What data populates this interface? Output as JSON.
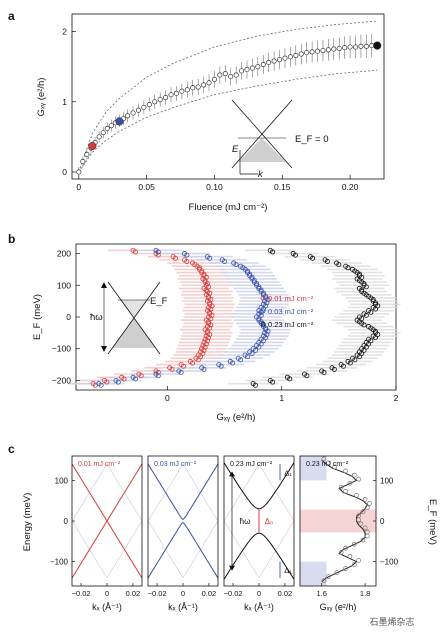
{
  "panels": {
    "a": "a",
    "b": "b",
    "c": "c"
  },
  "watermark": "石墨烯杂志",
  "colors": {
    "red": "#d83a3a",
    "blue": "#3750a8",
    "black": "#111111",
    "grey": "#999999",
    "pink": "#f3c9c9",
    "lavender": "#ccd0ea",
    "cone": "#cfcfcf"
  },
  "chart_data": [
    {
      "id": "a",
      "type": "scatter",
      "xlabel": "Fluence (mJ cm⁻²)",
      "ylabel": "Gₓᵧ (e²/h)",
      "xlim": [
        -0.005,
        0.225
      ],
      "ylim": [
        -0.1,
        2.25
      ],
      "xticks": [
        0,
        0.05,
        0.1,
        0.15,
        0.2
      ],
      "xticklabels": [
        "0",
        "0.05",
        "0.10",
        "0.15",
        "0.20"
      ],
      "yticks": [
        0,
        1,
        2
      ],
      "yticklabels": [
        "0",
        "1",
        "2"
      ],
      "series": [
        {
          "x": [
            0.0,
            0.003,
            0.006,
            0.009,
            0.012,
            0.015,
            0.018,
            0.021,
            0.024,
            0.027,
            0.03,
            0.033,
            0.036,
            0.04,
            0.044,
            0.048,
            0.052,
            0.056,
            0.06,
            0.064,
            0.068,
            0.072,
            0.076,
            0.08,
            0.084,
            0.088,
            0.092,
            0.096,
            0.1,
            0.104,
            0.108,
            0.112,
            0.116,
            0.12,
            0.124,
            0.128,
            0.132,
            0.136,
            0.14,
            0.144,
            0.148,
            0.152,
            0.156,
            0.16,
            0.164,
            0.168,
            0.172,
            0.176,
            0.18,
            0.184,
            0.188,
            0.192,
            0.196,
            0.2,
            0.204,
            0.208,
            0.212,
            0.216
          ],
          "y": [
            0.0,
            0.15,
            0.25,
            0.34,
            0.42,
            0.5,
            0.56,
            0.62,
            0.66,
            0.7,
            0.73,
            0.76,
            0.8,
            0.84,
            0.88,
            0.92,
            0.96,
            1.0,
            1.03,
            1.06,
            1.1,
            1.12,
            1.15,
            1.17,
            1.2,
            1.21,
            1.24,
            1.27,
            1.32,
            1.38,
            1.4,
            1.36,
            1.38,
            1.44,
            1.46,
            1.48,
            1.5,
            1.53,
            1.56,
            1.58,
            1.6,
            1.62,
            1.64,
            1.66,
            1.68,
            1.7,
            1.71,
            1.72,
            1.73,
            1.74,
            1.75,
            1.76,
            1.77,
            1.78,
            1.78,
            1.79,
            1.79,
            1.8
          ]
        }
      ],
      "highlight": [
        {
          "x": 0.01,
          "y": 0.37,
          "color": "#d83a3a"
        },
        {
          "x": 0.03,
          "y": 0.72,
          "color": "#3750a8"
        },
        {
          "x": 0.22,
          "y": 1.8,
          "color": "#111111"
        }
      ],
      "bound_upper": {
        "x": [
          0,
          0.01,
          0.02,
          0.03,
          0.05,
          0.07,
          0.1,
          0.13,
          0.16,
          0.19,
          0.22
        ],
        "y": [
          0,
          0.55,
          0.85,
          1.05,
          1.35,
          1.55,
          1.78,
          1.93,
          2.03,
          2.1,
          2.15
        ]
      },
      "bound_lower": {
        "x": [
          0,
          0.01,
          0.02,
          0.03,
          0.05,
          0.07,
          0.1,
          0.13,
          0.16,
          0.19,
          0.22
        ],
        "y": [
          0,
          0.28,
          0.45,
          0.58,
          0.78,
          0.92,
          1.1,
          1.22,
          1.32,
          1.4,
          1.45
        ]
      },
      "inset": {
        "ef_label": "E_F = 0",
        "e_axis": "E",
        "k_axis": "k"
      }
    },
    {
      "id": "b",
      "type": "scatter",
      "xlabel": "Gₓᵧ (e²/h)",
      "ylabel": "E_F (meV)",
      "xlim": [
        -0.8,
        2.0
      ],
      "ylim": [
        -230,
        230
      ],
      "xticks": [
        0,
        1,
        2
      ],
      "xticklabels": [
        "0",
        "1",
        "2"
      ],
      "yticks": [
        -200,
        -100,
        0,
        100,
        200
      ],
      "yticklabels": [
        "−200",
        "−100",
        "0",
        "100",
        "200"
      ],
      "series": [
        {
          "name": "0.01 mJ cm⁻²",
          "color": "#d83a3a",
          "y": [
            210,
            200,
            190,
            180,
            170,
            160,
            150,
            140,
            130,
            120,
            110,
            100,
            90,
            80,
            70,
            60,
            50,
            40,
            30,
            20,
            10,
            0,
            -10,
            -20,
            -30,
            -40,
            -50,
            -60,
            -70,
            -80,
            -90,
            -100,
            -110,
            -120,
            -130,
            -140,
            -150,
            -160,
            -170,
            -180,
            -190,
            -200,
            -210
          ],
          "x": [
            -0.3,
            -0.1,
            0.05,
            0.15,
            0.22,
            0.26,
            0.28,
            0.3,
            0.32,
            0.31,
            0.33,
            0.34,
            0.32,
            0.35,
            0.34,
            0.36,
            0.35,
            0.37,
            0.36,
            0.35,
            0.37,
            0.36,
            0.34,
            0.36,
            0.35,
            0.33,
            0.35,
            0.34,
            0.33,
            0.32,
            0.31,
            0.3,
            0.29,
            0.27,
            0.25,
            0.2,
            0.12,
            0.02,
            -0.1,
            -0.25,
            -0.4,
            -0.55,
            -0.65
          ]
        },
        {
          "name": "0.03 mJ cm⁻²",
          "color": "#3750a8",
          "y": [
            210,
            200,
            190,
            180,
            170,
            160,
            150,
            140,
            130,
            120,
            110,
            100,
            90,
            80,
            70,
            60,
            50,
            40,
            30,
            20,
            10,
            0,
            -10,
            -20,
            -30,
            -40,
            -50,
            -60,
            -70,
            -80,
            -90,
            -100,
            -110,
            -120,
            -130,
            -140,
            -150,
            -160,
            -170,
            -180,
            -190,
            -200,
            -210
          ],
          "x": [
            -0.1,
            0.15,
            0.35,
            0.48,
            0.58,
            0.64,
            0.68,
            0.7,
            0.72,
            0.74,
            0.76,
            0.78,
            0.8,
            0.82,
            0.84,
            0.86,
            0.85,
            0.84,
            0.82,
            0.8,
            0.8,
            0.78,
            0.8,
            0.82,
            0.84,
            0.86,
            0.85,
            0.84,
            0.82,
            0.8,
            0.78,
            0.75,
            0.72,
            0.68,
            0.62,
            0.55,
            0.45,
            0.3,
            0.1,
            -0.1,
            -0.3,
            -0.45,
            -0.6
          ]
        },
        {
          "name": "0.23 mJ cm⁻²",
          "color": "#111111",
          "y": [
            210,
            200,
            190,
            180,
            170,
            160,
            150,
            140,
            130,
            120,
            110,
            100,
            90,
            80,
            70,
            60,
            50,
            40,
            30,
            20,
            10,
            0,
            -10,
            -20,
            -30,
            -40,
            -50,
            -60,
            -70,
            -80,
            -90,
            -100,
            -110,
            -120,
            -130,
            -140,
            -150,
            -160,
            -170,
            -180,
            -190,
            -200,
            -210
          ],
          "x": [
            0.9,
            1.1,
            1.25,
            1.38,
            1.48,
            1.56,
            1.62,
            1.66,
            1.68,
            1.66,
            1.7,
            1.72,
            1.68,
            1.7,
            1.74,
            1.78,
            1.8,
            1.82,
            1.8,
            1.76,
            1.72,
            1.68,
            1.66,
            1.7,
            1.76,
            1.8,
            1.82,
            1.8,
            1.76,
            1.74,
            1.72,
            1.7,
            1.68,
            1.66,
            1.62,
            1.58,
            1.52,
            1.44,
            1.35,
            1.2,
            1.05,
            0.9,
            0.75
          ]
        }
      ],
      "legend": "right",
      "inset": {
        "omega_label": "ħω",
        "ef_label": "E_F"
      }
    },
    {
      "id": "c",
      "type": "line",
      "subpanels": [
        {
          "title": "0.01 mJ cm⁻²",
          "title_color": "#d83a3a",
          "xlabel": "kₓ (Å⁻¹)",
          "gap": 0
        },
        {
          "title": "0.03 mJ cm⁻²",
          "title_color": "#3750a8",
          "xlabel": "kₓ (Å⁻¹)",
          "gap": 8
        },
        {
          "title": "0.23 mJ cm⁻²",
          "title_color": "#111111",
          "xlabel": "kₓ (Å⁻¹)",
          "gap": 60
        },
        {
          "title": "0.23 mJ cm⁻²",
          "title_color": "#111111",
          "xlabel": "Gₓᵧ (e²/h)"
        }
      ],
      "ylabel_left": "Energy (meV)",
      "ylabel_right": "E_F (meV)",
      "ylim": [
        -160,
        160
      ],
      "yticks": [
        -100,
        0,
        100
      ],
      "yticklabels": [
        "−100",
        "0",
        "100"
      ],
      "xticks_k": [
        -0.02,
        0,
        0.02
      ],
      "xticklabels_k": [
        "−0.02",
        "0",
        "0.02"
      ],
      "xlim_k": [
        -0.027,
        0.027
      ],
      "xticks_g": [
        1.6,
        1.8
      ],
      "xticklabels_g": [
        "1.6",
        "1.8"
      ],
      "xlim_g": [
        1.5,
        1.85
      ],
      "annotations": {
        "omega": "ħω",
        "delta0": "Δ₀",
        "delta1": "Δ₁"
      },
      "gxy_profile": {
        "y": [
          150,
          140,
          130,
          120,
          110,
          100,
          90,
          80,
          70,
          60,
          50,
          40,
          30,
          20,
          10,
          0,
          -10,
          -20,
          -30,
          -40,
          -50,
          -60,
          -70,
          -80,
          -90,
          -100,
          -110,
          -120,
          -130,
          -140,
          -150
        ],
        "x": [
          1.6,
          1.62,
          1.65,
          1.7,
          1.74,
          1.76,
          1.72,
          1.68,
          1.7,
          1.75,
          1.79,
          1.81,
          1.8,
          1.78,
          1.76,
          1.76,
          1.77,
          1.79,
          1.8,
          1.8,
          1.78,
          1.74,
          1.7,
          1.68,
          1.72,
          1.76,
          1.74,
          1.7,
          1.66,
          1.62,
          1.6
        ]
      }
    }
  ]
}
